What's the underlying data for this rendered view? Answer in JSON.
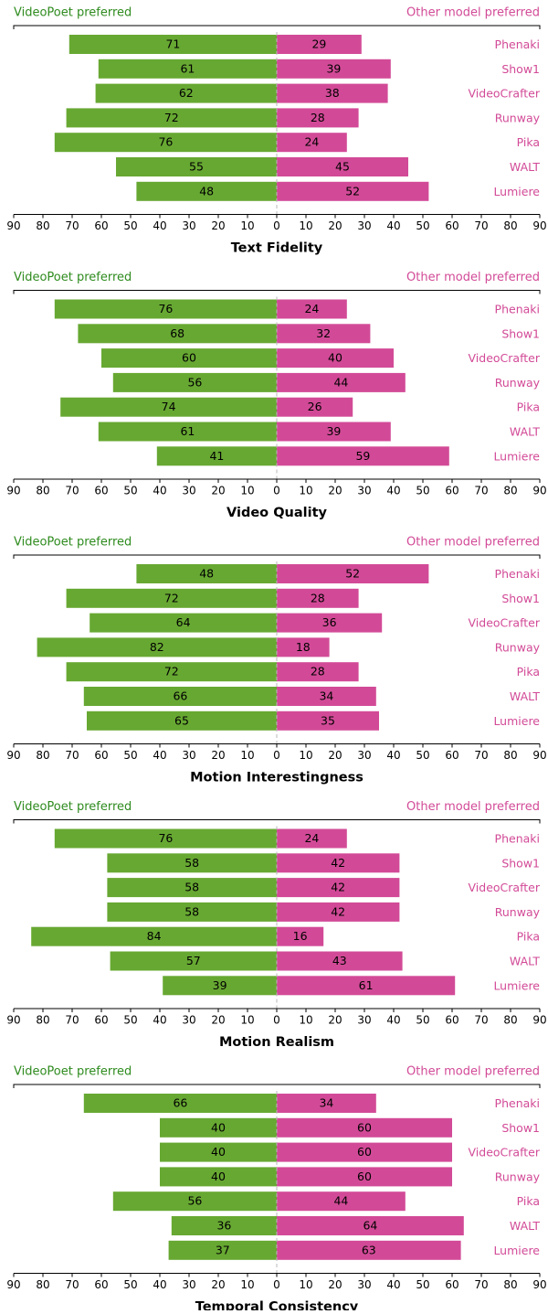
{
  "labels": {
    "left_header": "VideoPoet preferred",
    "right_header": "Other model preferred"
  },
  "colors": {
    "videopoet": "#67a832",
    "other": "#d24a97",
    "left_header_text": "#2e8b1e",
    "right_header_text": "#d24a97",
    "center_line": "#b8b8b8"
  },
  "chart_data": [
    {
      "type": "bar",
      "orientation": "horizontal-diverging",
      "title": "Text Fidelity",
      "categories": [
        "Phenaki",
        "Show1",
        "VideoCrafter",
        "Runway",
        "Pika",
        "WALT",
        "Lumiere"
      ],
      "series": [
        {
          "name": "VideoPoet preferred",
          "values": [
            71,
            61,
            62,
            72,
            76,
            55,
            48
          ]
        },
        {
          "name": "Other model preferred",
          "values": [
            29,
            39,
            38,
            28,
            24,
            45,
            52
          ]
        }
      ],
      "xlim": [
        -90,
        90
      ],
      "xticks": [
        "90",
        "80",
        "70",
        "60",
        "50",
        "40",
        "30",
        "20",
        "10",
        "0",
        "10",
        "20",
        "30",
        "40",
        "50",
        "60",
        "70",
        "80",
        "90"
      ]
    },
    {
      "type": "bar",
      "orientation": "horizontal-diverging",
      "title": "Video Quality",
      "categories": [
        "Phenaki",
        "Show1",
        "VideoCrafter",
        "Runway",
        "Pika",
        "WALT",
        "Lumiere"
      ],
      "series": [
        {
          "name": "VideoPoet preferred",
          "values": [
            76,
            68,
            60,
            56,
            74,
            61,
            41
          ]
        },
        {
          "name": "Other model preferred",
          "values": [
            24,
            32,
            40,
            44,
            26,
            39,
            59
          ]
        }
      ],
      "xlim": [
        -90,
        90
      ],
      "xticks": [
        "90",
        "80",
        "70",
        "60",
        "50",
        "40",
        "30",
        "20",
        "10",
        "0",
        "10",
        "20",
        "30",
        "40",
        "50",
        "60",
        "70",
        "80",
        "90"
      ]
    },
    {
      "type": "bar",
      "orientation": "horizontal-diverging",
      "title": "Motion Interestingness",
      "categories": [
        "Phenaki",
        "Show1",
        "VideoCrafter",
        "Runway",
        "Pika",
        "WALT",
        "Lumiere"
      ],
      "series": [
        {
          "name": "VideoPoet preferred",
          "values": [
            48,
            72,
            64,
            82,
            72,
            66,
            65
          ]
        },
        {
          "name": "Other model preferred",
          "values": [
            52,
            28,
            36,
            18,
            28,
            34,
            35
          ]
        }
      ],
      "xlim": [
        -90,
        90
      ],
      "xticks": [
        "90",
        "80",
        "70",
        "60",
        "50",
        "40",
        "30",
        "20",
        "10",
        "0",
        "10",
        "20",
        "30",
        "40",
        "50",
        "60",
        "70",
        "80",
        "90"
      ]
    },
    {
      "type": "bar",
      "orientation": "horizontal-diverging",
      "title": "Motion Realism",
      "categories": [
        "Phenaki",
        "Show1",
        "VideoCrafter",
        "Runway",
        "Pika",
        "WALT",
        "Lumiere"
      ],
      "series": [
        {
          "name": "VideoPoet preferred",
          "values": [
            76,
            58,
            58,
            58,
            84,
            57,
            39
          ]
        },
        {
          "name": "Other model preferred",
          "values": [
            24,
            42,
            42,
            42,
            16,
            43,
            61
          ]
        }
      ],
      "xlim": [
        -90,
        90
      ],
      "xticks": [
        "90",
        "80",
        "70",
        "60",
        "50",
        "40",
        "30",
        "20",
        "10",
        "0",
        "10",
        "20",
        "30",
        "40",
        "50",
        "60",
        "70",
        "80",
        "90"
      ]
    },
    {
      "type": "bar",
      "orientation": "horizontal-diverging",
      "title": "Temporal Consistency",
      "categories": [
        "Phenaki",
        "Show1",
        "VideoCrafter",
        "Runway",
        "Pika",
        "WALT",
        "Lumiere"
      ],
      "series": [
        {
          "name": "VideoPoet preferred",
          "values": [
            66,
            40,
            40,
            40,
            56,
            36,
            37
          ]
        },
        {
          "name": "Other model preferred",
          "values": [
            34,
            60,
            60,
            60,
            44,
            64,
            63
          ]
        }
      ],
      "xlim": [
        -90,
        90
      ],
      "xticks": [
        "90",
        "80",
        "70",
        "60",
        "50",
        "40",
        "30",
        "20",
        "10",
        "0",
        "10",
        "20",
        "30",
        "40",
        "50",
        "60",
        "70",
        "80",
        "90"
      ]
    }
  ]
}
